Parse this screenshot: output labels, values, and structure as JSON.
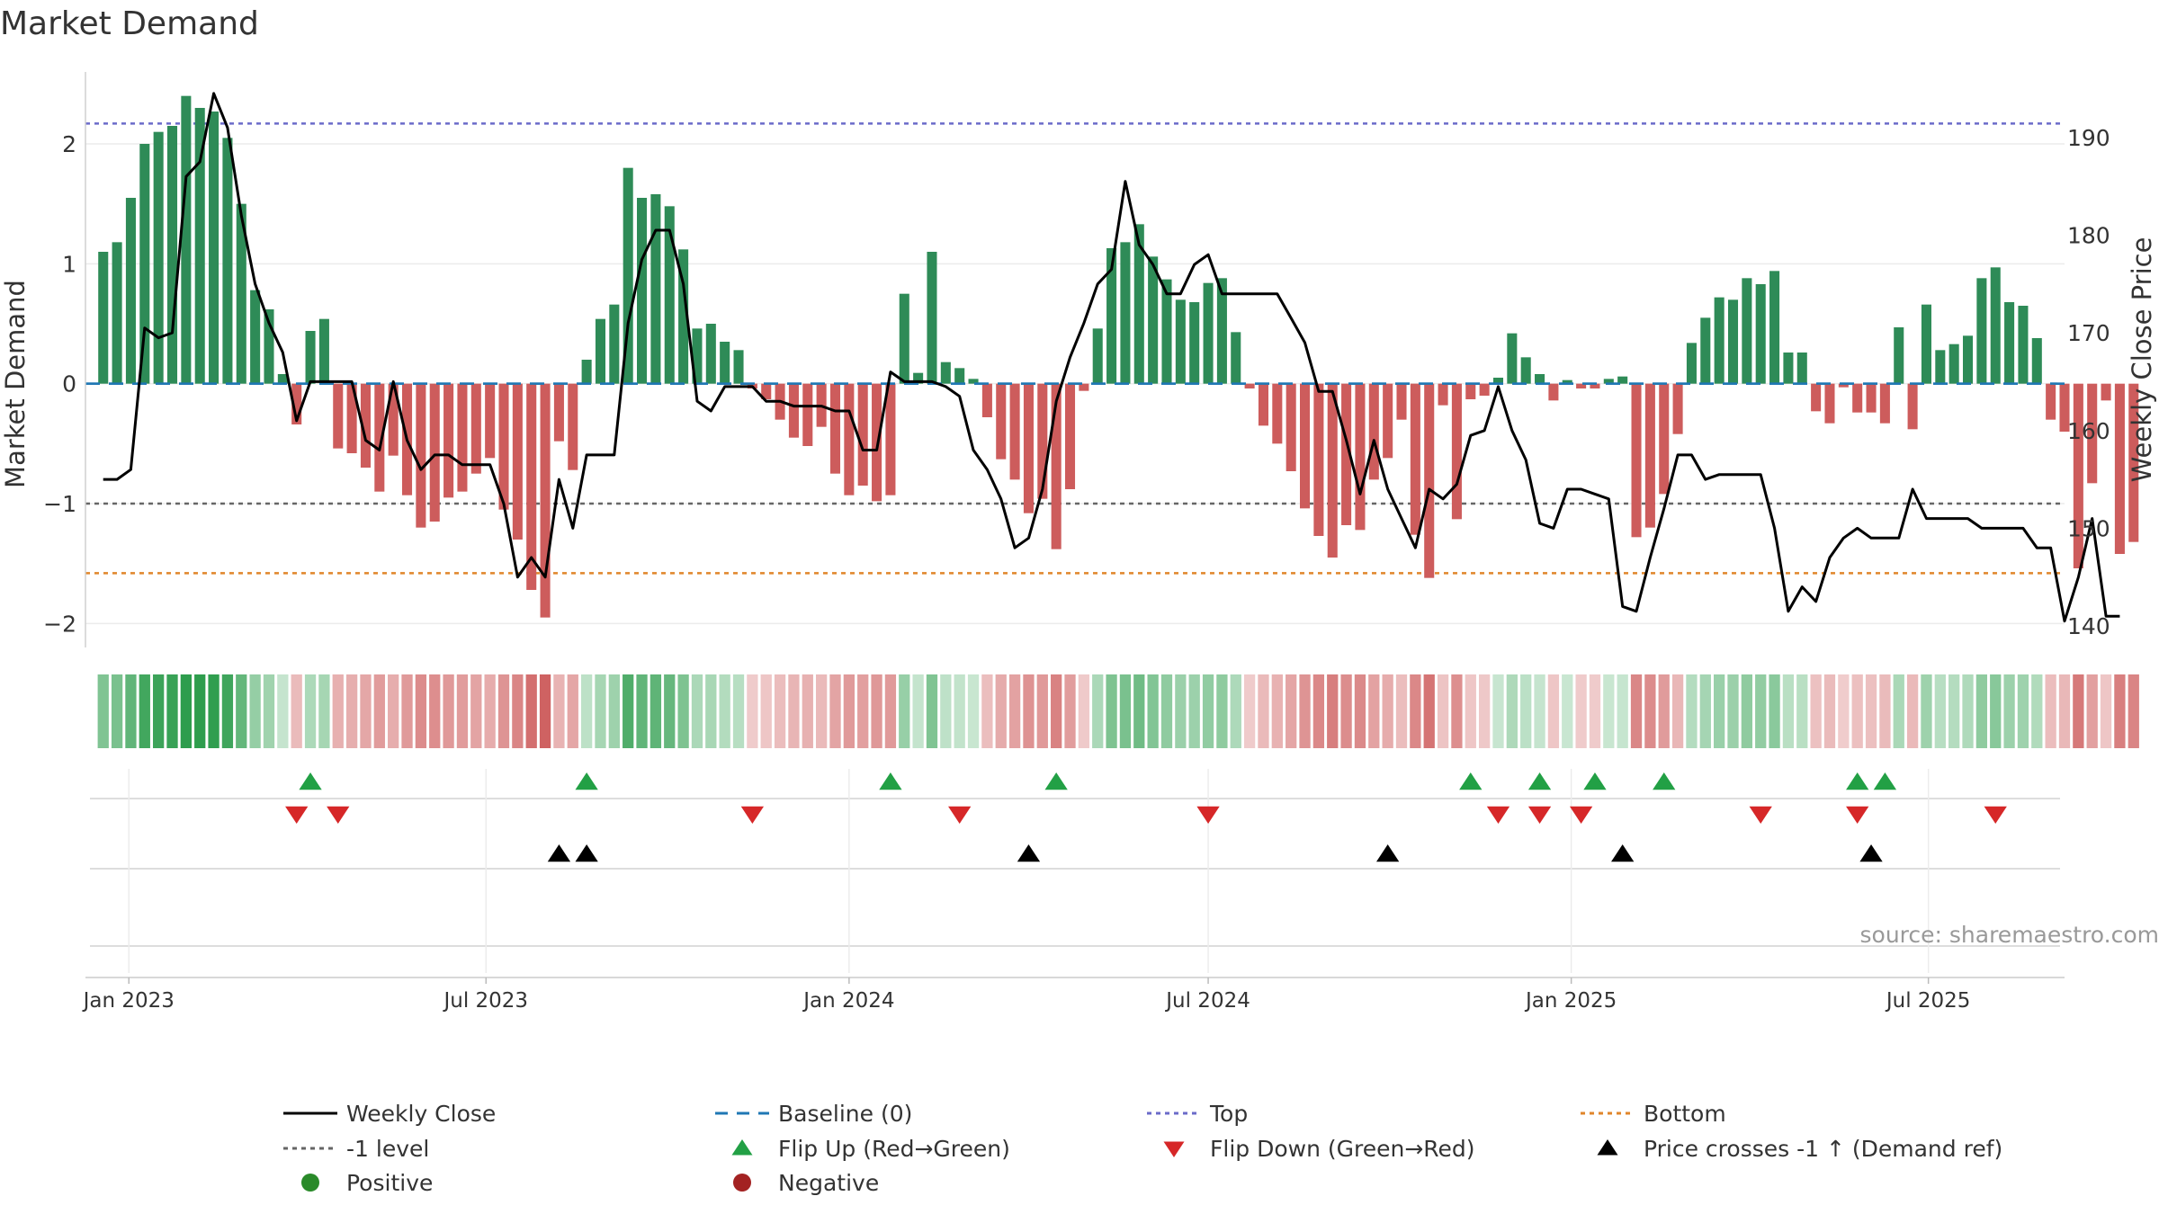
{
  "chart_data": {
    "type": "bar",
    "title": "Market Demand",
    "ylabel": "Market Demand",
    "y2label": "Weekly Close Price",
    "ylim": [
      -2.2,
      2.6
    ],
    "y2lim": [
      137.8,
      196.7
    ],
    "yticks": [
      "−2",
      "−1",
      "0",
      "1",
      "2"
    ],
    "yticks_values": [
      -2,
      -1,
      0,
      1,
      2
    ],
    "y2ticks": [
      "140",
      "150",
      "160",
      "170",
      "180",
      "190"
    ],
    "y2ticks_values": [
      140,
      150,
      160,
      170,
      180,
      190
    ],
    "x_start": "2022-12-19",
    "x_step_days": 7,
    "x_range_days": [
      -9,
      994
    ],
    "xticks": [
      {
        "label": "Jan 2023",
        "day": 13
      },
      {
        "label": "Jul 2023",
        "day": 194
      },
      {
        "label": "Jan 2024",
        "day": 378
      },
      {
        "label": "Jul 2024",
        "day": 560
      },
      {
        "label": "Jan 2025",
        "day": 744
      },
      {
        "label": "Jul 2025",
        "day": 925
      }
    ],
    "series": [
      {
        "name": "Market Demand",
        "values": [
          1.1,
          1.18,
          1.55,
          2.0,
          2.1,
          2.15,
          2.4,
          2.3,
          2.27,
          2.05,
          1.5,
          0.78,
          0.62,
          0.08,
          -0.34,
          0.44,
          0.54,
          -0.54,
          -0.58,
          -0.7,
          -0.9,
          -0.6,
          -0.93,
          -1.2,
          -1.15,
          -0.95,
          -0.9,
          -0.75,
          -0.62,
          -1.05,
          -1.3,
          -1.72,
          -1.95,
          -0.48,
          -0.72,
          0.2,
          0.54,
          0.66,
          1.8,
          1.55,
          1.58,
          1.48,
          1.12,
          0.46,
          0.5,
          0.35,
          0.28,
          -0.04,
          -0.13,
          -0.3,
          -0.45,
          -0.52,
          -0.36,
          -0.75,
          -0.93,
          -0.85,
          -0.98,
          -0.93,
          0.75,
          0.09,
          1.1,
          0.18,
          0.13,
          0.04,
          -0.28,
          -0.63,
          -0.8,
          -1.08,
          -0.96,
          -1.38,
          -0.88,
          -0.06,
          0.46,
          1.13,
          1.18,
          1.33,
          1.06,
          0.87,
          0.7,
          0.68,
          0.84,
          0.88,
          0.43,
          -0.04,
          -0.35,
          -0.5,
          -0.73,
          -1.04,
          -1.27,
          -1.45,
          -1.18,
          -1.22,
          -0.8,
          -0.62,
          -0.3,
          -1.26,
          -1.62,
          -0.18,
          -1.13,
          -0.13,
          -0.1,
          0.05,
          0.42,
          0.22,
          0.08,
          -0.14,
          0.03,
          -0.04,
          -0.04,
          0.04,
          0.06,
          -1.28,
          -1.2,
          -0.92,
          -0.42,
          0.34,
          0.55,
          0.72,
          0.7,
          0.88,
          0.83,
          0.94,
          0.26,
          0.26,
          -0.23,
          -0.33,
          -0.03,
          -0.24,
          -0.24,
          -0.33,
          0.47,
          -0.38,
          0.66,
          0.28,
          0.33,
          0.4,
          0.88,
          0.97,
          0.68,
          0.65,
          0.38,
          -0.3,
          -0.4,
          -1.54,
          -0.83,
          -0.14,
          -1.42,
          -1.32
        ]
      },
      {
        "name": "Weekly Close",
        "values": [
          155,
          155,
          156,
          170.5,
          169.5,
          170,
          186,
          187.5,
          194.5,
          191,
          182,
          175,
          171,
          168,
          161,
          165,
          165,
          165,
          165,
          159,
          158,
          165,
          159,
          156,
          157.5,
          157.5,
          156.5,
          156.5,
          156.5,
          152.5,
          145,
          147,
          145,
          155,
          150,
          157.5,
          157.5,
          157.5,
          171,
          177.5,
          180.5,
          180.5,
          175,
          163,
          162,
          164.5,
          164.5,
          164.5,
          163,
          163,
          162.5,
          162.5,
          162.5,
          162,
          162,
          158,
          158,
          166,
          165,
          165,
          165,
          164.5,
          163.5,
          158,
          156,
          153,
          148,
          149,
          154,
          163,
          167.5,
          171,
          175,
          176.5,
          185.5,
          179,
          177,
          174,
          174,
          177,
          178,
          174,
          174,
          174,
          174,
          174,
          171.5,
          169,
          164,
          164,
          159,
          153.5,
          159,
          154,
          151,
          148,
          154,
          153,
          154.5,
          159.5,
          160,
          164.5,
          160,
          157,
          150.5,
          150,
          154,
          154,
          153.5,
          153,
          142,
          141.5,
          147,
          152,
          157.5,
          157.5,
          155,
          155.5,
          155.5,
          155.5,
          155.5,
          150,
          141.5,
          144,
          142.5,
          147,
          149,
          150,
          149,
          149,
          149,
          154,
          151,
          151,
          151,
          151,
          150,
          150,
          150,
          150,
          148,
          148,
          140.5,
          145,
          151,
          141,
          141
        ]
      }
    ],
    "reference_lines": [
      {
        "name": "Baseline (0)",
        "value": 0,
        "color": "#1f77b4",
        "style": "dashed"
      },
      {
        "name": "-1 level",
        "value": -1,
        "color": "#666666",
        "style": "dotted"
      },
      {
        "name": "Top",
        "value": 2.17,
        "color": "#6b6bc9",
        "style": "dotted"
      },
      {
        "name": "Bottom",
        "value": -1.58,
        "color": "#e0862b",
        "style": "dotted"
      }
    ],
    "flip_up_weeks": [
      15,
      35,
      57,
      69,
      99,
      104,
      108,
      113,
      127,
      129
    ],
    "flip_down_weeks": [
      14,
      17,
      47,
      62,
      80,
      101,
      104,
      107,
      120,
      127,
      137
    ],
    "price_cross_weeks": [
      33,
      35,
      67,
      93,
      110,
      128
    ],
    "legend_position": "bottom",
    "legend": [
      {
        "label": "Weekly Close",
        "symbol": "line",
        "color": "#000000"
      },
      {
        "label": "Baseline (0)",
        "symbol": "dashed",
        "color": "#1f77b4"
      },
      {
        "label": "Top",
        "symbol": "dotted",
        "color": "#6b6bc9"
      },
      {
        "label": "Bottom",
        "symbol": "dotted",
        "color": "#e0862b"
      },
      {
        "label": "-1 level",
        "symbol": "dotted",
        "color": "#666666"
      },
      {
        "label": "Flip Up (Red→Green)",
        "symbol": "triangle-up",
        "color": "#22a045"
      },
      {
        "label": "Flip Down (Green→Red)",
        "symbol": "triangle-down",
        "color": "#d62728"
      },
      {
        "label": "Price crosses -1 ↑ (Demand ref)",
        "symbol": "triangle-up",
        "color": "#000000"
      },
      {
        "label": "Positive",
        "symbol": "circle",
        "color": "#2a8a2a"
      },
      {
        "label": "Negative",
        "symbol": "circle",
        "color": "#a32222"
      }
    ],
    "source": "source: sharemaestro.com"
  },
  "colors": {
    "positive_bar": "#2e8b57",
    "negative_bar": "#cd5c5c",
    "price_line": "#000000"
  }
}
